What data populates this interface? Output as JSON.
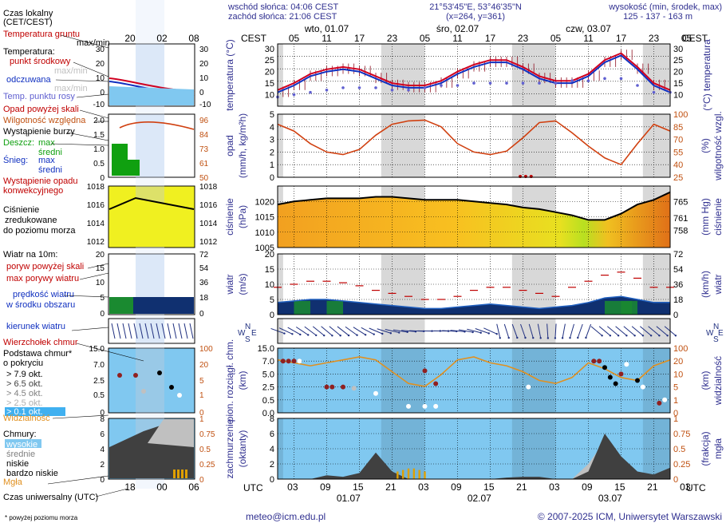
{
  "header": {
    "sunrise": "wschód słońca: 04:06 CEST",
    "sunset": "zachód słońca: 21:06 CEST",
    "coords": "21°53'45\"E, 53°46'35\"N",
    "grid": "(x=264,  y=361)",
    "elevation_title": "wysokość (min, środek, max)",
    "elevation": "125 - 137 - 163 m"
  },
  "time": {
    "cest_label": "CEST",
    "utc_label": "UTC",
    "top_hours": [
      "05",
      "11",
      "17",
      "23",
      "05",
      "11",
      "17",
      "23",
      "05",
      "11",
      "17",
      "23",
      "05"
    ],
    "top_days": [
      "wto, 01.07",
      "śro, 02.07",
      "czw, 03.07"
    ],
    "bottom_hours": [
      "03",
      "09",
      "15",
      "21",
      "03",
      "09",
      "15",
      "21",
      "03",
      "09",
      "15",
      "21",
      "03"
    ],
    "bottom_days": [
      "01.07",
      "02.07",
      "03.07"
    ],
    "legend_top_hours": [
      "20",
      "02",
      "08"
    ],
    "legend_bottom_hours": [
      "18",
      "00",
      "06"
    ]
  },
  "legend": {
    "local_time": "Czas lokalny",
    "local_time_zone": "(CET/CEST)",
    "utc_time": "Czas uniwersalny (UTC)",
    "ground_temp": "Temperatura gruntu",
    "ground_temp_sub": "max/min",
    "temperature": "Temperatura:",
    "temp_mid": "punkt środkowy",
    "temp_max": "max/min",
    "temp_feel": "odczuwana",
    "temp_feel_sub": "max/min",
    "dew_point": "Temp. punktu rosy",
    "precip_above": "Opad powyżej skali",
    "humidity": "Wilgotność względna",
    "storm": "Wystąpienie burzy",
    "rain": "Deszcz:",
    "rain_max": "max",
    "rain_mid": "średni",
    "snow": "Śnieg:",
    "snow_max": "max",
    "snow_mid": "średni",
    "convective": "Wystąpienie opadu",
    "convective2": "konwekcyjnego",
    "pressure1": "Ciśnienie",
    "pressure2": "zredukowane",
    "pressure3": "do poziomu morza",
    "wind_title": "Wiatr na 10m:",
    "gust_above": "poryw powyżej skali",
    "gust_max": "max porywy wiatru",
    "wind_speed": "prędkość wiatru",
    "wind_speed2": "w środku obszaru",
    "wind_dir": "kierunek wiatru",
    "cloud_top": "Wierzchołek chmur",
    "cloud_base": "Podstawa chmur*",
    "cloud_base2": "o pokryciu",
    "okt1": "> 7.9 okt.",
    "okt2": "> 6.5 okt.",
    "okt3": "> 4.5 okt.",
    "okt4": "> 2.5 okt.",
    "okt5": "> 0.1 okt.",
    "visibility": "Widzialność",
    "clouds": "Chmury:",
    "cl_high": "wysokie",
    "cl_mid": "średnie",
    "cl_low": "niskie",
    "cl_vlow": "bardzo niskie",
    "fog": "Mgła",
    "footnote": "* powyżej poziomu morza"
  },
  "footer": {
    "email": "meteo@icm.edu.pl",
    "copyright": "© 2007-2025 ICM, Uniwersytet Warszawski"
  },
  "colors": {
    "temp": "#d00020",
    "feel": "#1030c0",
    "dew": "#6060d0",
    "humidity": "#d04010",
    "precip_rain": "#10a010",
    "sky": "#80c8f0",
    "pressure_high": "#e08020",
    "wind_dark": "#103070",
    "gust": "#c00000",
    "night": "#d8d8d8",
    "axis_left": "#303090",
    "axis_right_orange": "#c05010"
  },
  "chart_data": [
    {
      "panel": "temperature",
      "type": "line",
      "ylabel_left": "temperatura (°C)",
      "ylabel_right": "(°C) temperatura",
      "ylim": [
        5,
        32
      ],
      "yticks": [
        10,
        15,
        20,
        25,
        30
      ],
      "x_hours": [
        0,
        3,
        6,
        9,
        12,
        15,
        18,
        21,
        24,
        27,
        30,
        33,
        36,
        39,
        42,
        45,
        48,
        51,
        54,
        57,
        60,
        63,
        66,
        69,
        72
      ],
      "series": [
        {
          "role": "temperature",
          "values": [
            12,
            15,
            19,
            21,
            22,
            21,
            18,
            15,
            14,
            14,
            16,
            20,
            23,
            25,
            25,
            22,
            18,
            16,
            16,
            19,
            25,
            28,
            22,
            15,
            12
          ]
        },
        {
          "role": "feels-like",
          "values": [
            11,
            14,
            18,
            20,
            21,
            20,
            17,
            14,
            13,
            13,
            15,
            19,
            22,
            24,
            24,
            21,
            17,
            15,
            15,
            18,
            24,
            27,
            21,
            14,
            11
          ]
        },
        {
          "role": "dew-point",
          "values": [
            9,
            10,
            11,
            12,
            13,
            13,
            13,
            12,
            12,
            13,
            14,
            14,
            15,
            15,
            15,
            15,
            15,
            15,
            16,
            16,
            17,
            17,
            14,
            11,
            11
          ]
        }
      ]
    },
    {
      "panel": "precipitation-humidity",
      "type": "line",
      "ylabel_left": "opad (mm/h, kg/m²h)",
      "ylabel_right": "(%) wilgotność wzgl.",
      "ylim_left": [
        0,
        5
      ],
      "yticks_left": [
        0,
        1,
        2,
        3,
        4,
        5
      ],
      "yticks_right": [
        25,
        40,
        55,
        70,
        85,
        100
      ],
      "series": [
        {
          "role": "relative-humidity",
          "values": [
            88,
            80,
            65,
            55,
            52,
            58,
            75,
            88,
            92,
            93,
            85,
            65,
            55,
            52,
            56,
            72,
            90,
            92,
            78,
            62,
            48,
            40,
            65,
            88,
            80
          ]
        }
      ]
    },
    {
      "panel": "pressure",
      "type": "area",
      "ylabel_left": "ciśnienie (hPa)",
      "ylabel_right": "(mm Hg) ciśnienie",
      "ylim": [
        1005,
        1025
      ],
      "yticks_left": [
        1005,
        1010,
        1015,
        1020
      ],
      "yticks_right": [
        758,
        761,
        765
      ],
      "series": [
        {
          "role": "pressure",
          "values": [
            1019,
            1020,
            1020.5,
            1021,
            1021,
            1021,
            1021.5,
            1021.5,
            1021,
            1020.5,
            1020.5,
            1020.5,
            1020,
            1019.5,
            1019,
            1018,
            1017.5,
            1016.5,
            1015.5,
            1014,
            1014,
            1016,
            1019,
            1020.5,
            1023
          ]
        }
      ]
    },
    {
      "panel": "wind",
      "type": "area",
      "ylabel_left": "wiatr (m/s)",
      "ylabel_right": "(km/h) wiatr",
      "ylim": [
        0,
        20
      ],
      "yticks_left": [
        0,
        5,
        10,
        15,
        20
      ],
      "yticks_right": [
        0,
        18,
        36,
        54,
        72
      ],
      "series": [
        {
          "role": "wind-speed",
          "values": [
            4,
            4.5,
            5,
            5,
            4.5,
            4,
            3.5,
            3,
            2.5,
            2,
            2,
            2.5,
            3,
            3.5,
            3,
            2.5,
            2,
            2.5,
            3,
            4,
            5.5,
            6,
            5,
            4,
            4
          ]
        },
        {
          "role": "max-gust",
          "values": [
            9,
            10,
            11,
            11,
            10.5,
            9.5,
            8,
            7,
            6,
            5,
            5,
            6,
            8,
            9,
            9,
            8,
            7,
            6,
            9,
            11,
            13,
            14,
            12,
            9,
            9
          ]
        }
      ]
    },
    {
      "panel": "clouds-visibility",
      "type": "scatter",
      "ylabel_left": "pion. rozciągł. chm. (km)",
      "ylabel_right": "(km) widzialność",
      "yticks_left": [
        0,
        0.5,
        2.5,
        5.0,
        7.0,
        15.0
      ],
      "yticks_right": [
        0,
        1,
        5,
        10,
        20,
        100
      ]
    },
    {
      "panel": "cloud-cover",
      "type": "area",
      "ylabel_left": "zachmurzenie (oktanty)",
      "ylabel_right": "(frakcja) mgła",
      "ylim": [
        0,
        8
      ],
      "yticks_left": [
        0,
        2,
        4,
        6,
        8
      ],
      "yticks_right": [
        0,
        0.25,
        0.5,
        0.75,
        1
      ]
    }
  ]
}
